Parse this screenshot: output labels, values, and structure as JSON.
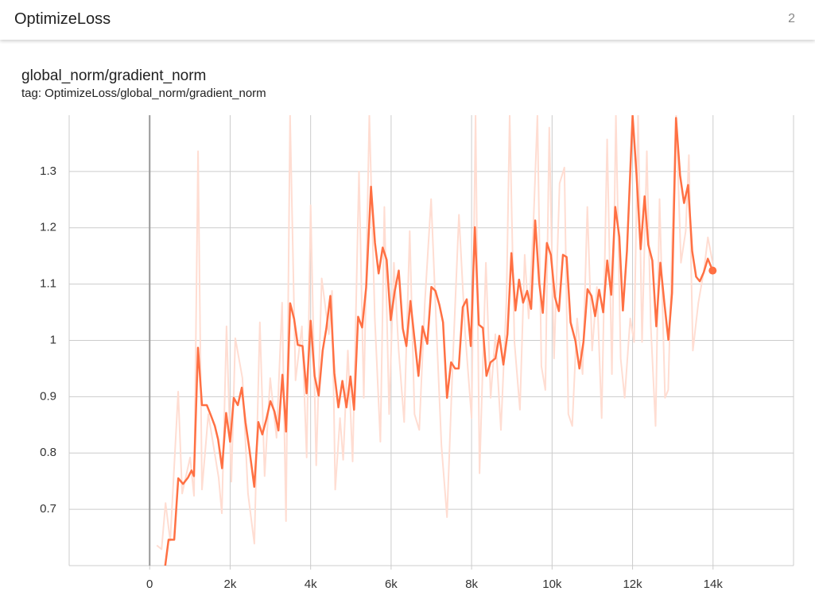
{
  "header": {
    "title": "OptimizeLoss",
    "count": "2"
  },
  "chart_data": {
    "type": "line",
    "title": "global_norm/gradient_norm",
    "subtitle": "tag: OptimizeLoss/global_norm/gradient_norm",
    "xlim": [
      -2000,
      16000
    ],
    "ylim": [
      0.6,
      1.4
    ],
    "xticks": [
      0,
      {
        "value": 2000,
        "label": "2k"
      },
      {
        "value": 4000,
        "label": "4k"
      },
      {
        "value": 6000,
        "label": "6k"
      },
      {
        "value": 8000,
        "label": "8k"
      },
      {
        "value": 10000,
        "label": "10k"
      },
      {
        "value": 12000,
        "label": "12k"
      },
      {
        "value": 14000,
        "label": "14k"
      }
    ],
    "yticks": [
      0.7,
      0.8,
      0.9,
      1,
      1.1,
      1.2,
      1.3
    ],
    "grid": true,
    "series": [
      {
        "color": "#ffddd2",
        "x": [
          177,
          296,
          394,
          512,
          709,
          808,
          1005,
          1103,
          1202,
          1300,
          1458,
          1714,
          1793,
          1911,
          2030,
          2128,
          2305,
          2443,
          2601,
          2739,
          2857,
          2995,
          3153,
          3291,
          3389,
          3488,
          3626,
          3783,
          3901,
          4000,
          4138,
          4276,
          4453,
          4532,
          4611,
          4729,
          4808,
          4926,
          5044,
          5202,
          5320,
          5458,
          5596,
          5734,
          5833,
          5951,
          6069,
          6187,
          6325,
          6463,
          6581,
          6700,
          6837,
          6995,
          7133,
          7251,
          7389,
          7527,
          7685,
          7842,
          8000,
          8099,
          8197,
          8355,
          8473,
          8591,
          8729,
          8867,
          8946,
          9064,
          9202,
          9320,
          9419,
          9537,
          9635,
          9734,
          9833,
          9931,
          10049,
          10187,
          10305,
          10404,
          10502,
          10621,
          10759,
          10877,
          10995,
          11113,
          11232,
          11369,
          11488,
          11586,
          11704,
          11803,
          11941,
          12039,
          12138,
          12236,
          12355,
          12453,
          12571,
          12670,
          12808,
          12887,
          12985,
          13084,
          13202,
          13320,
          13399,
          13498,
          13635,
          13773,
          13872,
          13990
        ],
        "values": [
          0.636,
          0.629,
          0.711,
          0.644,
          0.909,
          0.728,
          0.792,
          0.724,
          1.336,
          0.735,
          0.869,
          0.756,
          0.693,
          1.025,
          0.749,
          1.004,
          0.933,
          0.728,
          0.639,
          1.032,
          0.759,
          0.933,
          0.827,
          1.067,
          0.679,
          1.4,
          0.929,
          1.025,
          0.792,
          1.24,
          0.778,
          1.11,
          1.011,
          1.088,
          0.735,
          0.862,
          0.788,
          0.982,
          0.785,
          1.3,
          0.898,
          1.4,
          1.039,
          0.82,
          1.237,
          0.869,
          1.138,
          0.982,
          0.855,
          1.194,
          0.869,
          0.841,
          1.067,
          1.251,
          1.011,
          0.813,
          0.686,
          0.954,
          1.223,
          1.011,
          0.862,
          1.4,
          0.764,
          1.138,
          0.898,
          1.011,
          0.841,
          1.074,
          1.4,
          0.997,
          0.877,
          1.152,
          1.039,
          1.208,
          1.4,
          0.954,
          0.912,
          1.378,
          0.968,
          1.279,
          1.307,
          0.869,
          0.848,
          1.039,
          0.94,
          1.237,
          0.982,
          1.095,
          0.862,
          1.357,
          0.94,
          1.4,
          0.968,
          0.898,
          1.039,
          0.997,
          1.4,
          0.997,
          1.336,
          1.025,
          0.848,
          1.251,
          0.898,
          0.912,
          1.18,
          1.4,
          1.138,
          1.194,
          1.329,
          0.982,
          1.067,
          1.124,
          1.183,
          1.138
        ]
      },
      {
        "color": "#ff7043",
        "x": [
          370,
          470,
          610,
          710,
          830,
          950,
          1040,
          1100,
          1200,
          1300,
          1420,
          1520,
          1620,
          1700,
          1800,
          1900,
          2000,
          2090,
          2190,
          2290,
          2380,
          2480,
          2600,
          2700,
          2800,
          2900,
          3000,
          3100,
          3200,
          3300,
          3390,
          3490,
          3590,
          3680,
          3800,
          3900,
          4000,
          4100,
          4200,
          4300,
          4390,
          4490,
          4590,
          4690,
          4790,
          4890,
          4990,
          5080,
          5180,
          5280,
          5380,
          5500,
          5600,
          5690,
          5790,
          5890,
          5990,
          6090,
          6190,
          6290,
          6380,
          6480,
          6580,
          6680,
          6780,
          6900,
          7000,
          7100,
          7200,
          7290,
          7390,
          7490,
          7590,
          7680,
          7780,
          7880,
          7980,
          8080,
          8180,
          8280,
          8370,
          8470,
          8590,
          8690,
          8790,
          8890,
          8990,
          9090,
          9180,
          9280,
          9380,
          9480,
          9580,
          9680,
          9770,
          9870,
          9970,
          10070,
          10170,
          10270,
          10360,
          10460,
          10580,
          10680,
          10780,
          10880,
          10980,
          11070,
          11170,
          11270,
          11370,
          11470,
          11570,
          11670,
          11760,
          11860,
          12000,
          12100,
          12200,
          12300,
          12390,
          12490,
          12590,
          12690,
          12790,
          12890,
          12980,
          13080,
          13180,
          13280,
          13380,
          13480,
          13580,
          13670,
          13770,
          13870,
          13990
        ],
        "values": [
          0.59,
          0.646,
          0.646,
          0.755,
          0.745,
          0.756,
          0.769,
          0.759,
          0.987,
          0.885,
          0.885,
          0.867,
          0.848,
          0.824,
          0.773,
          0.871,
          0.82,
          0.898,
          0.885,
          0.916,
          0.855,
          0.806,
          0.74,
          0.855,
          0.833,
          0.86,
          0.892,
          0.874,
          0.84,
          0.939,
          0.838,
          1.066,
          1.038,
          0.992,
          0.99,
          0.906,
          1.035,
          0.937,
          0.902,
          0.982,
          1.021,
          1.079,
          0.942,
          0.881,
          0.928,
          0.881,
          0.936,
          0.877,
          1.042,
          1.023,
          1.094,
          1.273,
          1.173,
          1.119,
          1.165,
          1.143,
          1.036,
          1.087,
          1.124,
          1.021,
          0.99,
          1.07,
          1.004,
          0.937,
          1.025,
          0.994,
          1.095,
          1.088,
          1.063,
          1.032,
          0.898,
          0.961,
          0.95,
          0.95,
          1.059,
          1.073,
          0.99,
          1.201,
          1.028,
          1.022,
          0.937,
          0.961,
          0.968,
          1.008,
          0.957,
          1.011,
          1.155,
          1.053,
          1.108,
          1.067,
          1.088,
          1.056,
          1.213,
          1.103,
          1.049,
          1.173,
          1.152,
          1.077,
          1.052,
          1.152,
          1.148,
          1.032,
          0.999,
          0.95,
          0.997,
          1.091,
          1.079,
          1.043,
          1.09,
          1.05,
          1.142,
          1.081,
          1.237,
          1.184,
          1.053,
          1.159,
          1.399,
          1.293,
          1.162,
          1.256,
          1.17,
          1.142,
          1.025,
          1.138,
          1.067,
          1.001,
          1.084,
          1.395,
          1.293,
          1.244,
          1.276,
          1.159,
          1.113,
          1.105,
          1.121,
          1.145,
          1.124
        ]
      }
    ]
  }
}
